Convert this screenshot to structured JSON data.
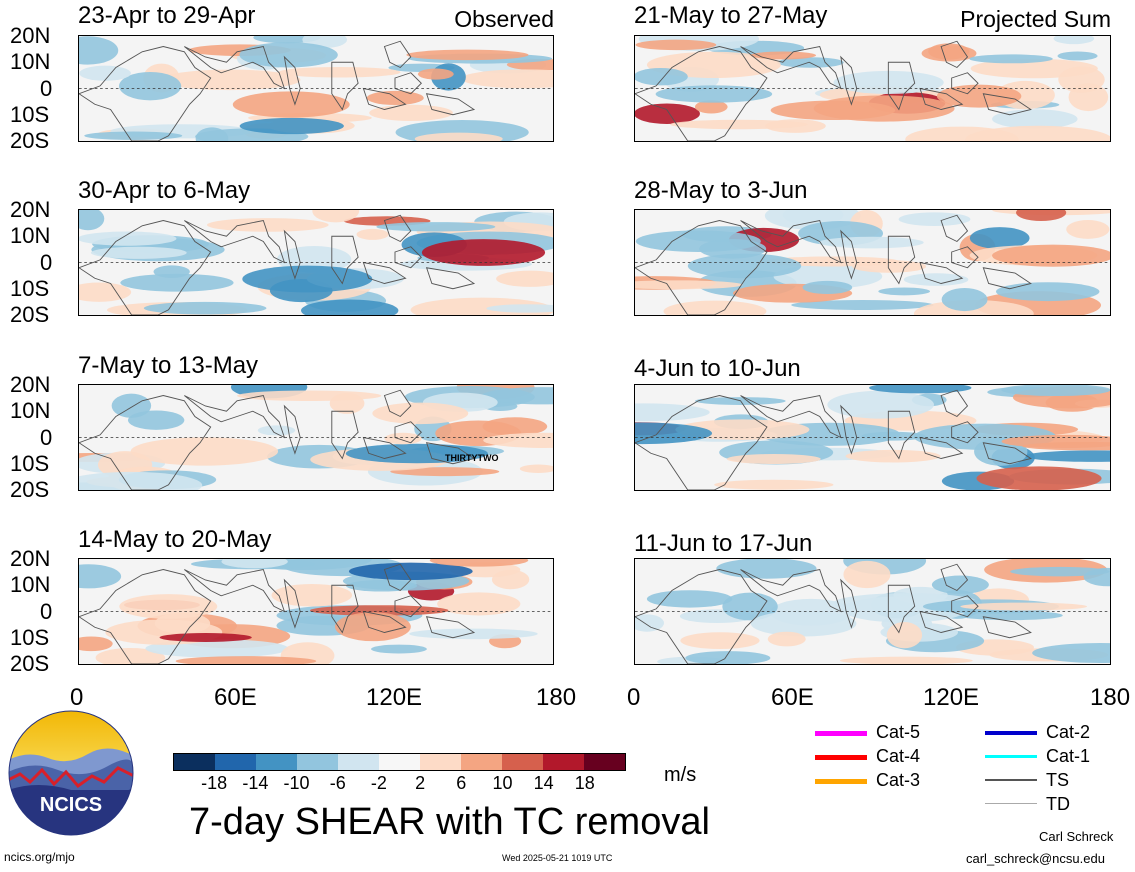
{
  "panels": [
    {
      "id": "p1",
      "title": "23-Apr to 29-Apr",
      "tag": "Observed",
      "storm": ""
    },
    {
      "id": "p2",
      "title": "30-Apr to 6-May",
      "tag": "",
      "storm": ""
    },
    {
      "id": "p3",
      "title": "7-May to 13-May",
      "tag": "",
      "storm": "THIRTYTWO"
    },
    {
      "id": "p4",
      "title": "14-May to 20-May",
      "tag": "",
      "storm": ""
    },
    {
      "id": "p5",
      "title": "21-May to 27-May",
      "tag": "Projected Sum",
      "storm": ""
    },
    {
      "id": "p6",
      "title": "28-May to 3-Jun",
      "tag": "",
      "storm": ""
    },
    {
      "id": "p7",
      "title": "4-Jun to 10-Jun",
      "tag": "",
      "storm": ""
    },
    {
      "id": "p8",
      "title": "11-Jun to 17-Jun",
      "tag": "",
      "storm": ""
    }
  ],
  "lat_labels": [
    "20N",
    "10N",
    "0",
    "10S",
    "20S"
  ],
  "lon_labels": [
    "0",
    "60E",
    "120E",
    "180"
  ],
  "colorbar": {
    "ticks": [
      "-18",
      "-14",
      "-10",
      "-6",
      "-2",
      "2",
      "6",
      "10",
      "14",
      "18"
    ],
    "colors": [
      "#0b2f5e",
      "#2166ac",
      "#4393c3",
      "#92c5de",
      "#d1e5f0",
      "#f7f7f7",
      "#fddbc7",
      "#f4a582",
      "#d6604d",
      "#b2182b",
      "#67001f"
    ],
    "units": "m/s"
  },
  "main_title": "7-day SHEAR with TC removal",
  "legend": [
    {
      "label": "Cat-5",
      "color": "#ff00ff"
    },
    {
      "label": "Cat-4",
      "color": "#ff0000"
    },
    {
      "label": "Cat-3",
      "color": "#ffa500"
    },
    {
      "label": "Cat-2",
      "color": "#0000cc"
    },
    {
      "label": "Cat-1",
      "color": "#00ffff"
    },
    {
      "label": "TS",
      "color": "#555555"
    },
    {
      "label": "TD",
      "color": "#aaaaaa"
    }
  ],
  "logo_text": "NCICS",
  "footer": {
    "url": "ncics.org/mjo",
    "timestamp": "Wed 2025-05-21 1019 UTC",
    "author": "Carl Schreck",
    "email": "carl_schreck@ncsu.edu"
  }
}
